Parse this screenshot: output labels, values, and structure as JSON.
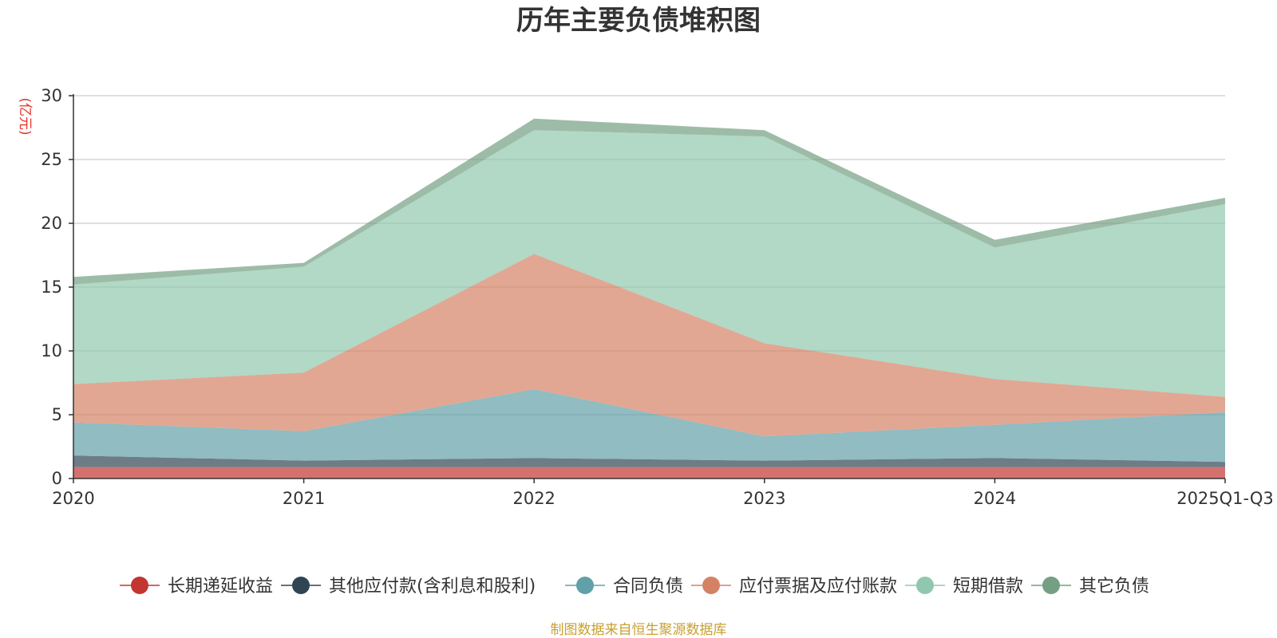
{
  "chart_data": {
    "type": "area",
    "stacked": true,
    "title": "历年主要负债堆积图",
    "ylabel": "(亿元)",
    "xlabel": "",
    "categories": [
      "2020",
      "2021",
      "2022",
      "2023",
      "2024",
      "2025Q1-Q3"
    ],
    "ylim": [
      0,
      30
    ],
    "yticks": [
      "0",
      "5",
      "10",
      "15",
      "20",
      "25",
      "30"
    ],
    "grid": true,
    "legend_position": "bottom",
    "series": [
      {
        "name": "长期递延收益",
        "color": "#c23531",
        "values": [
          0.9,
          0.9,
          0.9,
          0.9,
          0.9,
          0.9
        ]
      },
      {
        "name": "其他应付款(含利息和股利)",
        "color": "#2f4554",
        "values": [
          0.9,
          0.5,
          0.7,
          0.5,
          0.7,
          0.4
        ]
      },
      {
        "name": "合同负债",
        "color": "#61a0a8",
        "values": [
          2.6,
          2.3,
          5.4,
          1.9,
          2.6,
          3.9
        ]
      },
      {
        "name": "应付票据及应付账款",
        "color": "#d48265",
        "values": [
          3.0,
          4.6,
          10.6,
          7.3,
          3.6,
          1.2
        ]
      },
      {
        "name": "短期借款",
        "color": "#91c7ae",
        "values": [
          7.8,
          8.3,
          9.7,
          16.2,
          10.3,
          15.1
        ]
      },
      {
        "name": "其它负债",
        "color": "#749f83",
        "values": [
          0.6,
          0.3,
          0.9,
          0.5,
          0.6,
          0.5
        ]
      }
    ],
    "source": "制图数据来自恒生聚源数据库"
  }
}
